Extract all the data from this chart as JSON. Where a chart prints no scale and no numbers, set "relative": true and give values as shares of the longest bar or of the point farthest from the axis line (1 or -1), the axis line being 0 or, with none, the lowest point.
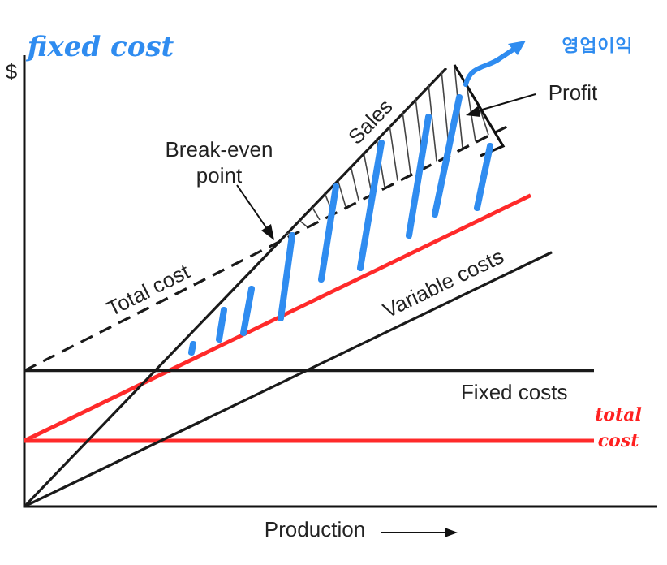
{
  "chart_data": {
    "type": "line",
    "relative": true,
    "ylabel": "$",
    "xlabel": "Production",
    "legend": false,
    "marker": "none",
    "categories": [
      null,
      null,
      null,
      null,
      null,
      null,
      null,
      null,
      null,
      null,
      null,
      null,
      null,
      null,
      null,
      null,
      null,
      null,
      null,
      null,
      null,
      null,
      null,
      null,
      null,
      null,
      null,
      null,
      null,
      null,
      null
    ],
    "series": [
      {
        "name": "Sales",
        "color": "#1a1a1a",
        "values": [
          0,
          null,
          null,
          null,
          null,
          null,
          null,
          null,
          null,
          null,
          null,
          null,
          null,
          null,
          null,
          null,
          null,
          null,
          null,
          null,
          1,
          null,
          null,
          null,
          null,
          null,
          null,
          null,
          null,
          null,
          null
        ]
      },
      {
        "name": "Total cost",
        "color": "#1a1a1a",
        "line_style": "dashed",
        "values": [
          0.31,
          null,
          null,
          null,
          null,
          null,
          null,
          null,
          null,
          null,
          null,
          null,
          null,
          null,
          null,
          null,
          null,
          null,
          null,
          null,
          null,
          null,
          null,
          0.87,
          null,
          null,
          null,
          null,
          null,
          null,
          null
        ]
      },
      {
        "name": "Variable costs",
        "color": "#1a1a1a",
        "values": [
          0,
          null,
          null,
          null,
          null,
          null,
          null,
          null,
          null,
          null,
          null,
          null,
          null,
          null,
          null,
          null,
          null,
          null,
          null,
          null,
          null,
          null,
          null,
          null,
          null,
          0.58,
          null,
          null,
          null,
          null,
          null
        ]
      },
      {
        "name": "Fixed costs",
        "color": "#1a1a1a",
        "values": [
          0.31,
          null,
          null,
          null,
          null,
          null,
          null,
          null,
          null,
          null,
          null,
          null,
          null,
          null,
          null,
          null,
          null,
          null,
          null,
          null,
          null,
          null,
          null,
          null,
          null,
          null,
          null,
          0.31,
          null,
          null,
          null
        ]
      },
      {
        "color": "#ff2a2a",
        "values": [
          0.15,
          null,
          null,
          null,
          null,
          null,
          null,
          null,
          null,
          null,
          null,
          null,
          null,
          null,
          null,
          null,
          null,
          null,
          null,
          null,
          null,
          null,
          null,
          null,
          0.71,
          null,
          null,
          null,
          null,
          null,
          null
        ]
      },
      {
        "color": "#ff2a2a",
        "values": [
          0.15,
          null,
          null,
          null,
          null,
          null,
          null,
          null,
          null,
          null,
          null,
          null,
          null,
          null,
          null,
          null,
          null,
          null,
          null,
          null,
          null,
          null,
          null,
          null,
          null,
          null,
          null,
          0.15,
          null,
          null,
          null
        ]
      }
    ],
    "annotations": [
      "Break-even point",
      "Profit",
      "fixed cost",
      "영업이익",
      "total cost"
    ]
  }
}
